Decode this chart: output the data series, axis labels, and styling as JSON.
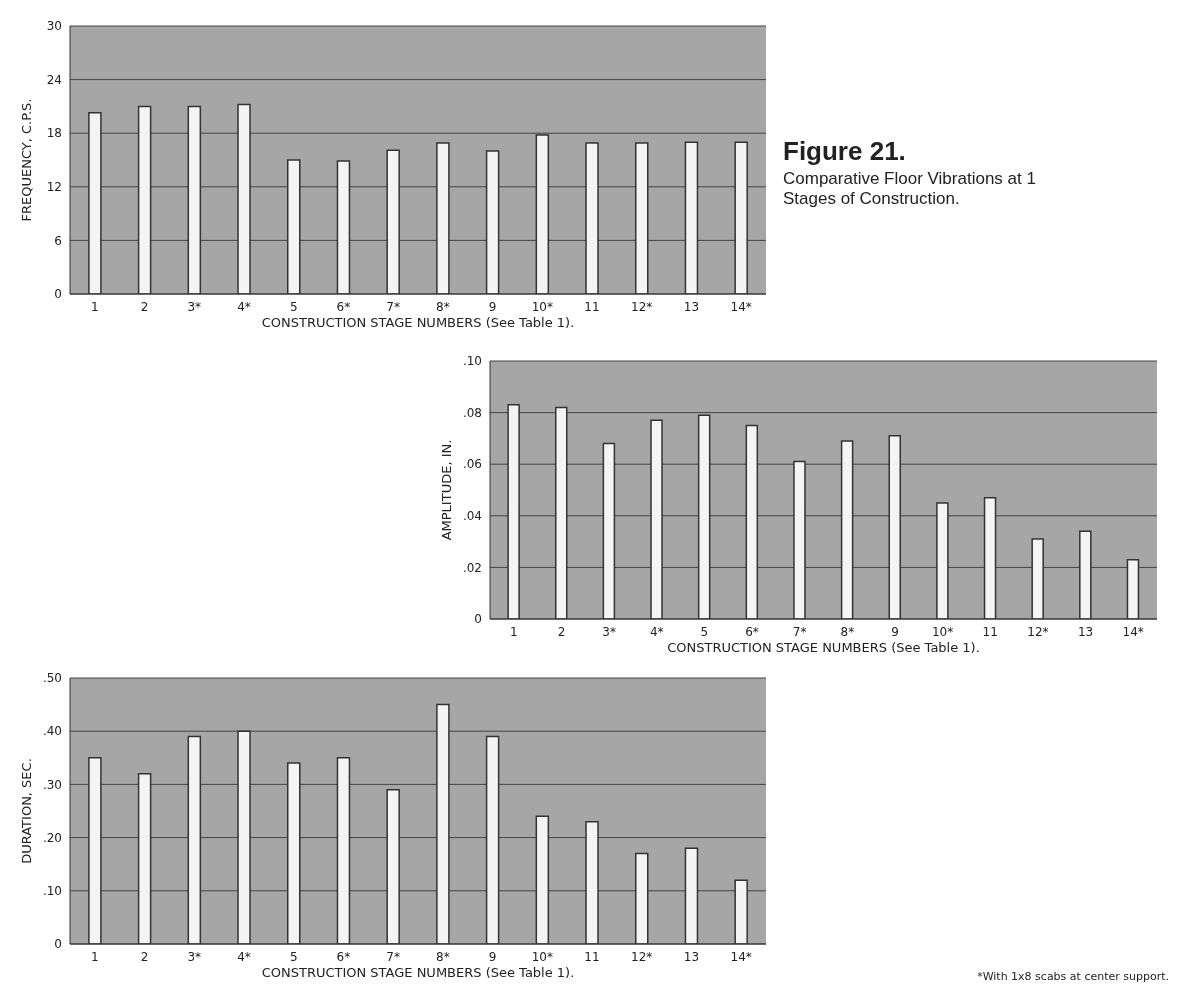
{
  "chart_data": [
    {
      "type": "bar",
      "xlabel": "CONSTRUCTION STAGE NUMBERS (See Table 1).",
      "ylabel": "FREQUENCY, C.P.S.",
      "categories": [
        "1",
        "2",
        "3*",
        "4*",
        "5",
        "6*",
        "7*",
        "8*",
        "9",
        "10*",
        "11",
        "12*",
        "13",
        "14*"
      ],
      "values": [
        20.3,
        21,
        21,
        21.2,
        15,
        14.9,
        16.1,
        16.9,
        16,
        17.8,
        16.9,
        16.9,
        17,
        17
      ],
      "color": "#f4f4f4",
      "ylim": [
        0,
        30
      ],
      "yticks": [
        0,
        6,
        12,
        18,
        24,
        30
      ],
      "grid": "y",
      "legend": false
    },
    {
      "type": "bar",
      "title": "Figure 21.",
      "subtitle": "Comparative Floor Vibrations at 1 Stages of Construction.",
      "xlabel": "CONSTRUCTION STAGE NUMBERS (See Table 1).",
      "ylabel": "AMPLITUDE, IN.",
      "categories": [
        "1",
        "2",
        "3*",
        "4*",
        "5",
        "6*",
        "7*",
        "8*",
        "9",
        "10*",
        "11",
        "12*",
        "13",
        "14*"
      ],
      "values": [
        0.083,
        0.082,
        0.068,
        0.077,
        0.079,
        0.075,
        0.061,
        0.069,
        0.071,
        0.045,
        0.047,
        0.031,
        0.034,
        0.023
      ],
      "color": "#f4f4f4",
      "ylim": [
        0,
        0.1
      ],
      "yticks": [
        0,
        {
          "value": 0.02,
          "label": ".02"
        },
        {
          "value": 0.04,
          "label": ".04"
        },
        {
          "value": 0.06,
          "label": ".06"
        },
        {
          "value": 0.08,
          "label": ".08"
        },
        {
          "value": 0.1,
          "label": ".10"
        }
      ],
      "grid": "y",
      "legend": false
    },
    {
      "type": "bar",
      "xlabel": "CONSTRUCTION STAGE NUMBERS (See Table 1).",
      "ylabel": "DURATION, SEC.",
      "categories": [
        "1",
        "2",
        "3*",
        "4*",
        "5",
        "6*",
        "7*",
        "8*",
        "9",
        "10*",
        "11",
        "12*",
        "13",
        "14*"
      ],
      "values": [
        0.35,
        0.32,
        0.39,
        0.4,
        0.34,
        0.35,
        0.29,
        0.45,
        0.39,
        0.24,
        0.23,
        0.17,
        0.18,
        0.12
      ],
      "color": "#f4f4f4",
      "ylim": [
        0,
        0.5
      ],
      "yticks": [
        0,
        {
          "value": 0.1,
          "label": ".10"
        },
        {
          "value": 0.2,
          "label": ".20"
        },
        {
          "value": 0.3,
          "label": ".30"
        },
        {
          "value": 0.4,
          "label": ".40"
        },
        {
          "value": 0.5,
          "label": ".50"
        }
      ],
      "grid": "y",
      "legend": false,
      "annotations": [
        "*With 1x8 scabs at center support."
      ]
    }
  ]
}
